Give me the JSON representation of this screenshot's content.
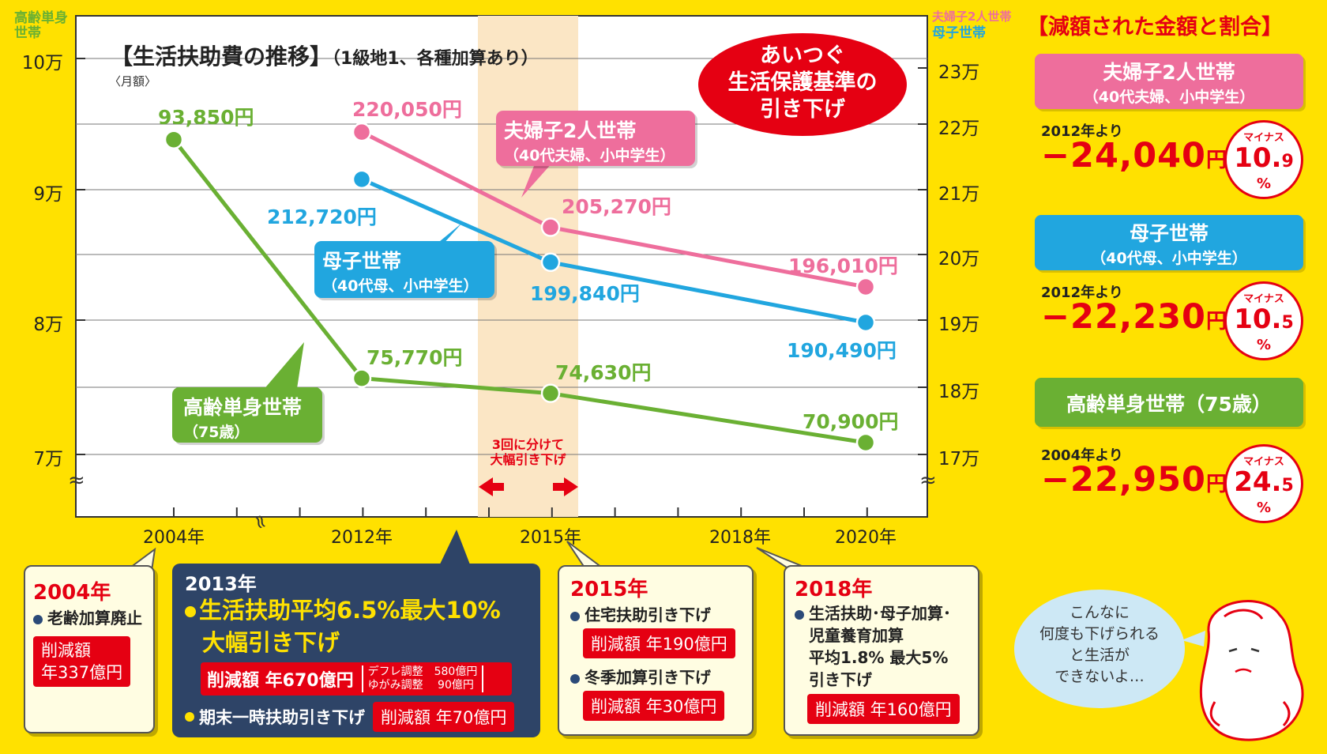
{
  "chart_data": {
    "type": "line",
    "title": "【生活扶助費の推移】",
    "subtitle": "（1級地1、各種加算あり）",
    "unit_note": "〈月額〉",
    "categories": [
      "2004年",
      "2012年",
      "2015年",
      "2018年",
      "2020年"
    ],
    "left_axis": {
      "label_line1": "高齢単身",
      "label_line2": "世帯",
      "ticks": [
        "10万",
        "9万",
        "8万",
        "7万"
      ],
      "range": [
        70000,
        100000
      ]
    },
    "right_axis": {
      "label_line1": "夫婦子2人世帯",
      "label_line2": "母子世帯",
      "ticks": [
        "23万",
        "22万",
        "21万",
        "20万",
        "19万",
        "18万",
        "17万"
      ],
      "range": [
        170000,
        230000
      ]
    },
    "series": [
      {
        "name": "夫婦子2人世帯",
        "sub": "（40代夫婦、小中学生）",
        "axis": "right",
        "color": "#EE6E9C",
        "points": [
          {
            "x": "2012年",
            "y": 220050,
            "label": "220,050円"
          },
          {
            "x": "2015年",
            "y": 205270,
            "label": "205,270円"
          },
          {
            "x": "2020年",
            "y": 196010,
            "label": "196,010円"
          }
        ]
      },
      {
        "name": "母子世帯",
        "sub": "（40代母、小中学生）",
        "axis": "right",
        "color": "#21A6DF",
        "points": [
          {
            "x": "2012年",
            "y": 212720,
            "label": "212,720円"
          },
          {
            "x": "2015年",
            "y": 199840,
            "label": "199,840円"
          },
          {
            "x": "2020年",
            "y": 190490,
            "label": "190,490円"
          }
        ]
      },
      {
        "name": "高齢単身世帯",
        "sub": "（75歳）",
        "axis": "left",
        "color": "#6AB033",
        "points": [
          {
            "x": "2004年",
            "y": 93850,
            "label": "93,850円"
          },
          {
            "x": "2012年",
            "y": 75770,
            "label": "75,770円"
          },
          {
            "x": "2015年",
            "y": 74630,
            "label": "74,630円"
          },
          {
            "x": "2020年",
            "y": 70900,
            "label": "70,900円"
          }
        ]
      }
    ],
    "band_note": [
      "3回に分けて",
      "大幅引き下げ"
    ],
    "headline": [
      "あいつぐ",
      "生活保護基準の",
      "引き下げ"
    ]
  },
  "summary": {
    "title": "【減額された金額と割合】",
    "items": [
      {
        "head": "夫婦子2人世帯",
        "head_sub": "（40代夫婦、小中学生）",
        "color": "#EE6E9C",
        "since": "2012年より",
        "amount": "−24,040",
        "yen": "円",
        "minus": "マイナス",
        "pct_int": "10.",
        "pct_dec": "9",
        "pct": "%"
      },
      {
        "head": "母子世帯",
        "head_sub": "（40代母、小中学生）",
        "color": "#21A6DF",
        "since": "2012年より",
        "amount": "−22,230",
        "yen": "円",
        "minus": "マイナス",
        "pct_int": "10.",
        "pct_dec": "5",
        "pct": "%"
      },
      {
        "head": "高齢単身世帯（75歳）",
        "head_sub": "",
        "color": "#6AB033",
        "since": "2004年より",
        "amount": "−22,950",
        "yen": "円",
        "minus": "マイナス",
        "pct_int": "24.",
        "pct_dec": "5",
        "pct": "%"
      }
    ]
  },
  "notes": {
    "n2004": {
      "year": "2004年",
      "item": "老齢加算廃止",
      "cut1": "削減額",
      "cut2": "年337億円"
    },
    "n2013": {
      "year": "2013年",
      "main1": "生活扶助平均6.5%最大10%",
      "main2": "大幅引き下げ",
      "cut": "削減額 年670億円",
      "d1": "デフレ調整　580億円",
      "d2": "ゆがみ調整　 90億円",
      "item2": "期末一時扶助引き下げ",
      "cut2": "削減額 年70億円"
    },
    "n2015": {
      "year": "2015年",
      "item1": "住宅扶助引き下げ",
      "cut1": "削減額 年190億円",
      "item2": "冬季加算引き下げ",
      "cut2": "削減額 年30億円"
    },
    "n2018": {
      "year": "2018年",
      "l1": "生活扶助･母子加算･",
      "l2": "児童養育加算",
      "l3": "平均1.8% 最大5%",
      "l4": "引き下げ",
      "cut": "削減額 年160億円"
    }
  },
  "speech": {
    "l1": "こんなに",
    "l2": "何度も下げられる",
    "l3": "と生活が",
    "l4": "できないよ…"
  }
}
